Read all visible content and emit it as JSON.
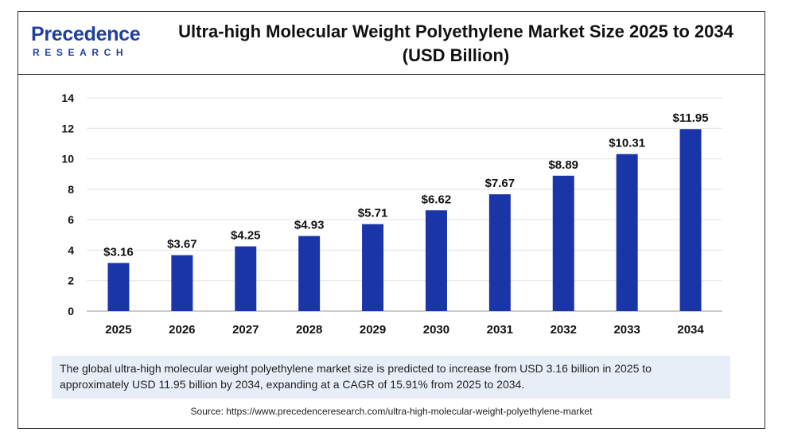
{
  "header": {
    "logo_main": "Precedence",
    "logo_sub": "RESEARCH",
    "title_line1": "Ultra-high Molecular Weight Polyethylene Market Size 2025 to 2034",
    "title_line2": "(USD Billion)"
  },
  "chart_data": {
    "type": "bar",
    "categories": [
      "2025",
      "2026",
      "2027",
      "2028",
      "2029",
      "2030",
      "2031",
      "2032",
      "2033",
      "2034"
    ],
    "values": [
      3.16,
      3.67,
      4.25,
      4.93,
      5.71,
      6.62,
      7.67,
      8.89,
      10.31,
      11.95
    ],
    "value_labels": [
      "$3.16",
      "$3.67",
      "$4.25",
      "$4.93",
      "$5.71",
      "$6.62",
      "$7.67",
      "$8.89",
      "$10.31",
      "$11.95"
    ],
    "yticks": [
      0,
      2,
      4,
      6,
      8,
      10,
      12,
      14
    ],
    "ylim": [
      0,
      14
    ],
    "grid": true,
    "bar_color": "#1a35a8"
  },
  "note": {
    "line1": "The global ultra-high molecular weight polyethylene market size is predicted to increase from USD 3.16 billion in 2025 to",
    "line2": "approximately USD 11.95 billion by 2034, expanding at a CAGR of 15.91% from 2025 to 2034."
  },
  "source": "Source: https://www.precedenceresearch.com/ultra-high-molecular-weight-polyethylene-market"
}
